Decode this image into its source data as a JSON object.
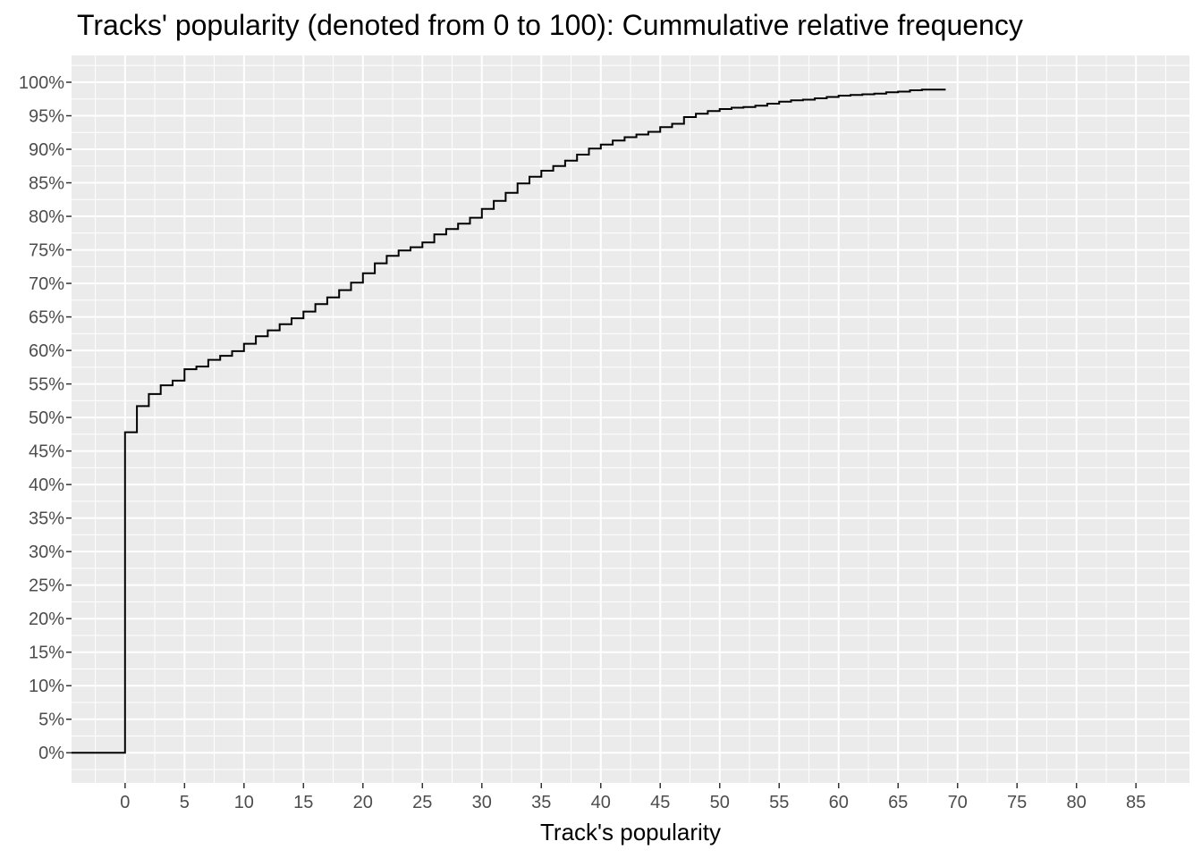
{
  "chart_data": {
    "type": "line",
    "step": true,
    "title": "Tracks' popularity (denoted from 0 to 100): Cummulative relative frequency",
    "xlabel": "Track's popularity",
    "ylabel": "",
    "xlim": [
      -4.5,
      89.5
    ],
    "ylim": [
      -4.5,
      104
    ],
    "x_ticks": [
      0,
      5,
      10,
      15,
      20,
      25,
      30,
      35,
      40,
      45,
      50,
      55,
      60,
      65,
      70,
      75,
      80,
      85
    ],
    "y_ticks": [
      0,
      5,
      10,
      15,
      20,
      25,
      30,
      35,
      40,
      45,
      50,
      55,
      60,
      65,
      70,
      75,
      80,
      85,
      90,
      95,
      100
    ],
    "y_tick_format": "percent",
    "grid": true,
    "line_color": "#000000",
    "panel_background": "#ebebeb",
    "grid_color": "#ffffff",
    "series": [
      {
        "x": [
          -4.5,
          0,
          1,
          2,
          3,
          4,
          5,
          6,
          7,
          8,
          9,
          10,
          11,
          12,
          13,
          14,
          15,
          16,
          17,
          18,
          19,
          20,
          21,
          22,
          23,
          24,
          25,
          26,
          27,
          28,
          29,
          30,
          31,
          32,
          33,
          34,
          35,
          36,
          37,
          38,
          39,
          40,
          41,
          42,
          43,
          44,
          45,
          46,
          47,
          48,
          49,
          50,
          51,
          52,
          53,
          54,
          55,
          56,
          57,
          58,
          59,
          60,
          61,
          62,
          63,
          64,
          65,
          66,
          67,
          68,
          69
        ],
        "y": [
          0,
          47.8,
          51.7,
          53.5,
          54.8,
          55.5,
          57.2,
          57.6,
          58.6,
          59.2,
          59.9,
          61.0,
          62.1,
          63.0,
          63.9,
          64.8,
          65.8,
          66.9,
          67.9,
          69.0,
          70.1,
          71.5,
          73.0,
          74.1,
          74.9,
          75.4,
          76.1,
          77.3,
          78.1,
          78.9,
          79.8,
          81.1,
          82.3,
          83.5,
          84.9,
          85.9,
          86.8,
          87.5,
          88.3,
          89.2,
          90.1,
          90.7,
          91.3,
          91.8,
          92.2,
          92.6,
          93.3,
          93.8,
          94.8,
          95.3,
          95.7,
          96.0,
          96.2,
          96.3,
          96.5,
          96.8,
          97.1,
          97.3,
          97.4,
          97.6,
          97.8,
          98.0,
          98.1,
          98.2,
          98.3,
          98.5,
          98.6,
          98.8,
          98.9,
          98.9,
          98.9
        ]
      }
    ]
  }
}
